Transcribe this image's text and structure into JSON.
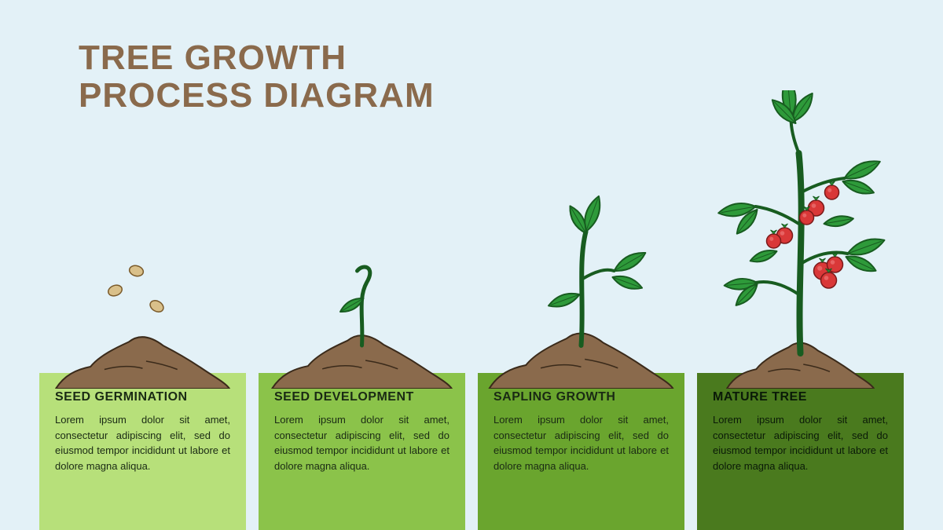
{
  "background_color": "#e3f1f7",
  "title": {
    "line1": "TREE GROWTH",
    "line2": "PROCESS DIAGRAM",
    "color": "#8a6a4c",
    "fontsize": 44
  },
  "soil": {
    "fill": "#8a6a4c",
    "stroke": "#3a2a1a",
    "stroke_width": 2
  },
  "leaf": {
    "fill": "#2e9a3a",
    "stroke": "#185c20",
    "stroke_width": 2
  },
  "stem": {
    "fill": "#3a8a3a",
    "stroke": "#185c20"
  },
  "seed": {
    "fill": "#d9c08a",
    "stroke": "#7a5a2a"
  },
  "fruit": {
    "fill": "#d93838",
    "stroke": "#7a1a1a",
    "highlight": "#f08080"
  },
  "stages": [
    {
      "id": "seed-germination",
      "label": "SEED GERMINATION",
      "desc": "Lorem ipsum dolor sit amet, consectetur adipiscing elit, sed do eiusmod tempor incididunt ut labore et dolore magna aliqua.",
      "card_bg": "#b7e07a",
      "text_color": "#1a2a14",
      "illus_height": 180
    },
    {
      "id": "seed-development",
      "label": "SEED DEVELOPMENT",
      "desc": "Lorem ipsum dolor sit amet, consectetur adipiscing elit, sed do eiusmod tempor incididunt ut labore et dolore magna aliqua.",
      "card_bg": "#8bc34a",
      "text_color": "#1a2a14",
      "illus_height": 220
    },
    {
      "id": "sapling-growth",
      "label": "SAPLING GROWTH",
      "desc": "Lorem ipsum dolor sit amet, consectetur adipiscing elit, sed do eiusmod tempor incididunt ut labore et dolore magna aliqua.",
      "card_bg": "#6aa52e",
      "text_color": "#1a2a14",
      "illus_height": 300
    },
    {
      "id": "mature-tree",
      "label": "MATURE TREE",
      "desc": "Lorem ipsum dolor sit amet, consectetur adipiscing elit, sed do eiusmod tempor incididunt ut labore et dolore magna aliqua.",
      "card_bg": "#4a7a1e",
      "text_color": "#0a1a08",
      "illus_height": 420
    }
  ]
}
